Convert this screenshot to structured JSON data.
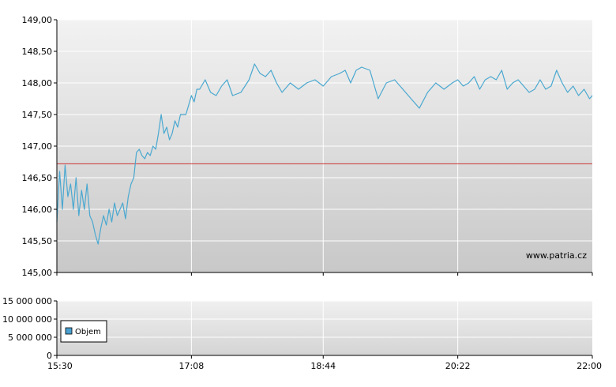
{
  "watermark": "www.patria.cz",
  "legend": {
    "label": "Objem",
    "swatch_color": "#4aa0d0"
  },
  "colors": {
    "price_line": "#4aa8d0",
    "reference_line": "#cc3333",
    "grid": "#ffffff"
  },
  "chart_data": [
    {
      "type": "line",
      "title": "",
      "xlabel": "",
      "ylabel": "",
      "x_tick_labels": [
        "15:30",
        "17:08",
        "18:44",
        "20:22",
        "22:00"
      ],
      "y_tick_labels": [
        "145,00",
        "145,50",
        "146,00",
        "146,50",
        "147,00",
        "147,50",
        "148,00",
        "148,50",
        "149,00"
      ],
      "ylim": [
        145.0,
        149.0
      ],
      "xlim": [
        "15:30",
        "22:00"
      ],
      "reference_line": 146.72,
      "series": [
        {
          "x": [
            "15:30",
            "15:32",
            "15:34",
            "15:36",
            "15:38",
            "15:40",
            "15:42",
            "15:44",
            "15:46",
            "15:48",
            "15:50",
            "15:52",
            "15:54",
            "15:56",
            "15:58",
            "16:00",
            "16:02",
            "16:04",
            "16:06",
            "16:08",
            "16:10",
            "16:12",
            "16:14",
            "16:16",
            "16:18",
            "16:20",
            "16:22",
            "16:24",
            "16:26",
            "16:28",
            "16:30",
            "16:32",
            "16:34",
            "16:36",
            "16:38",
            "16:40",
            "16:42",
            "16:44",
            "16:46",
            "16:48",
            "16:50",
            "16:52",
            "16:54",
            "16:56",
            "16:58",
            "17:00",
            "17:04",
            "17:08",
            "17:10",
            "17:12",
            "17:14",
            "17:18",
            "17:22",
            "17:26",
            "17:30",
            "17:34",
            "17:38",
            "17:44",
            "17:50",
            "17:54",
            "17:58",
            "18:02",
            "18:06",
            "18:10",
            "18:14",
            "18:20",
            "18:26",
            "18:32",
            "18:38",
            "18:44",
            "18:50",
            "18:56",
            "19:00",
            "19:04",
            "19:08",
            "19:12",
            "19:18",
            "19:24",
            "19:30",
            "19:36",
            "19:42",
            "19:48",
            "19:54",
            "20:00",
            "20:06",
            "20:12",
            "20:18",
            "20:22",
            "20:26",
            "20:30",
            "20:34",
            "20:38",
            "20:42",
            "20:46",
            "20:50",
            "20:54",
            "20:58",
            "21:02",
            "21:06",
            "21:10",
            "21:14",
            "21:18",
            "21:22",
            "21:26",
            "21:30",
            "21:34",
            "21:38",
            "21:42",
            "21:46",
            "21:50",
            "21:54",
            "21:58",
            "22:00"
          ],
          "values": [
            145.8,
            146.6,
            146.0,
            146.7,
            146.2,
            146.4,
            146.0,
            146.5,
            145.9,
            146.3,
            146.0,
            146.4,
            145.9,
            145.8,
            145.6,
            145.45,
            145.7,
            145.9,
            145.75,
            146.0,
            145.8,
            146.1,
            145.9,
            146.0,
            146.1,
            145.85,
            146.2,
            146.4,
            146.5,
            146.9,
            146.95,
            146.85,
            146.8,
            146.9,
            146.85,
            147.0,
            146.95,
            147.2,
            147.5,
            147.2,
            147.3,
            147.1,
            147.2,
            147.4,
            147.3,
            147.5,
            147.5,
            147.8,
            147.7,
            147.9,
            147.9,
            148.05,
            147.85,
            147.8,
            147.95,
            148.05,
            147.8,
            147.85,
            148.05,
            148.3,
            148.15,
            148.1,
            148.2,
            148.0,
            147.85,
            148.0,
            147.9,
            148.0,
            148.05,
            147.95,
            148.1,
            148.15,
            148.2,
            148.0,
            148.2,
            148.25,
            148.2,
            147.75,
            148.0,
            148.05,
            147.9,
            147.75,
            147.6,
            147.85,
            148.0,
            147.9,
            148.0,
            148.05,
            147.95,
            148.0,
            148.1,
            147.9,
            148.05,
            148.1,
            148.05,
            148.2,
            147.9,
            148.0,
            148.05,
            147.95,
            147.85,
            147.9,
            148.05,
            147.9,
            147.95,
            148.2,
            148.0,
            147.85,
            147.95,
            147.8,
            147.9,
            147.75,
            147.8
          ]
        }
      ]
    },
    {
      "type": "bar",
      "title": "",
      "xlabel": "",
      "ylabel": "",
      "legend": [
        "Objem"
      ],
      "y_tick_labels": [
        "0",
        "5 000 000",
        "10 000 000",
        "15 000 000"
      ],
      "ylim": [
        0,
        15000000
      ],
      "x_tick_labels": [
        "15:30",
        "17:08",
        "18:44",
        "20:22",
        "22:00"
      ]
    }
  ]
}
